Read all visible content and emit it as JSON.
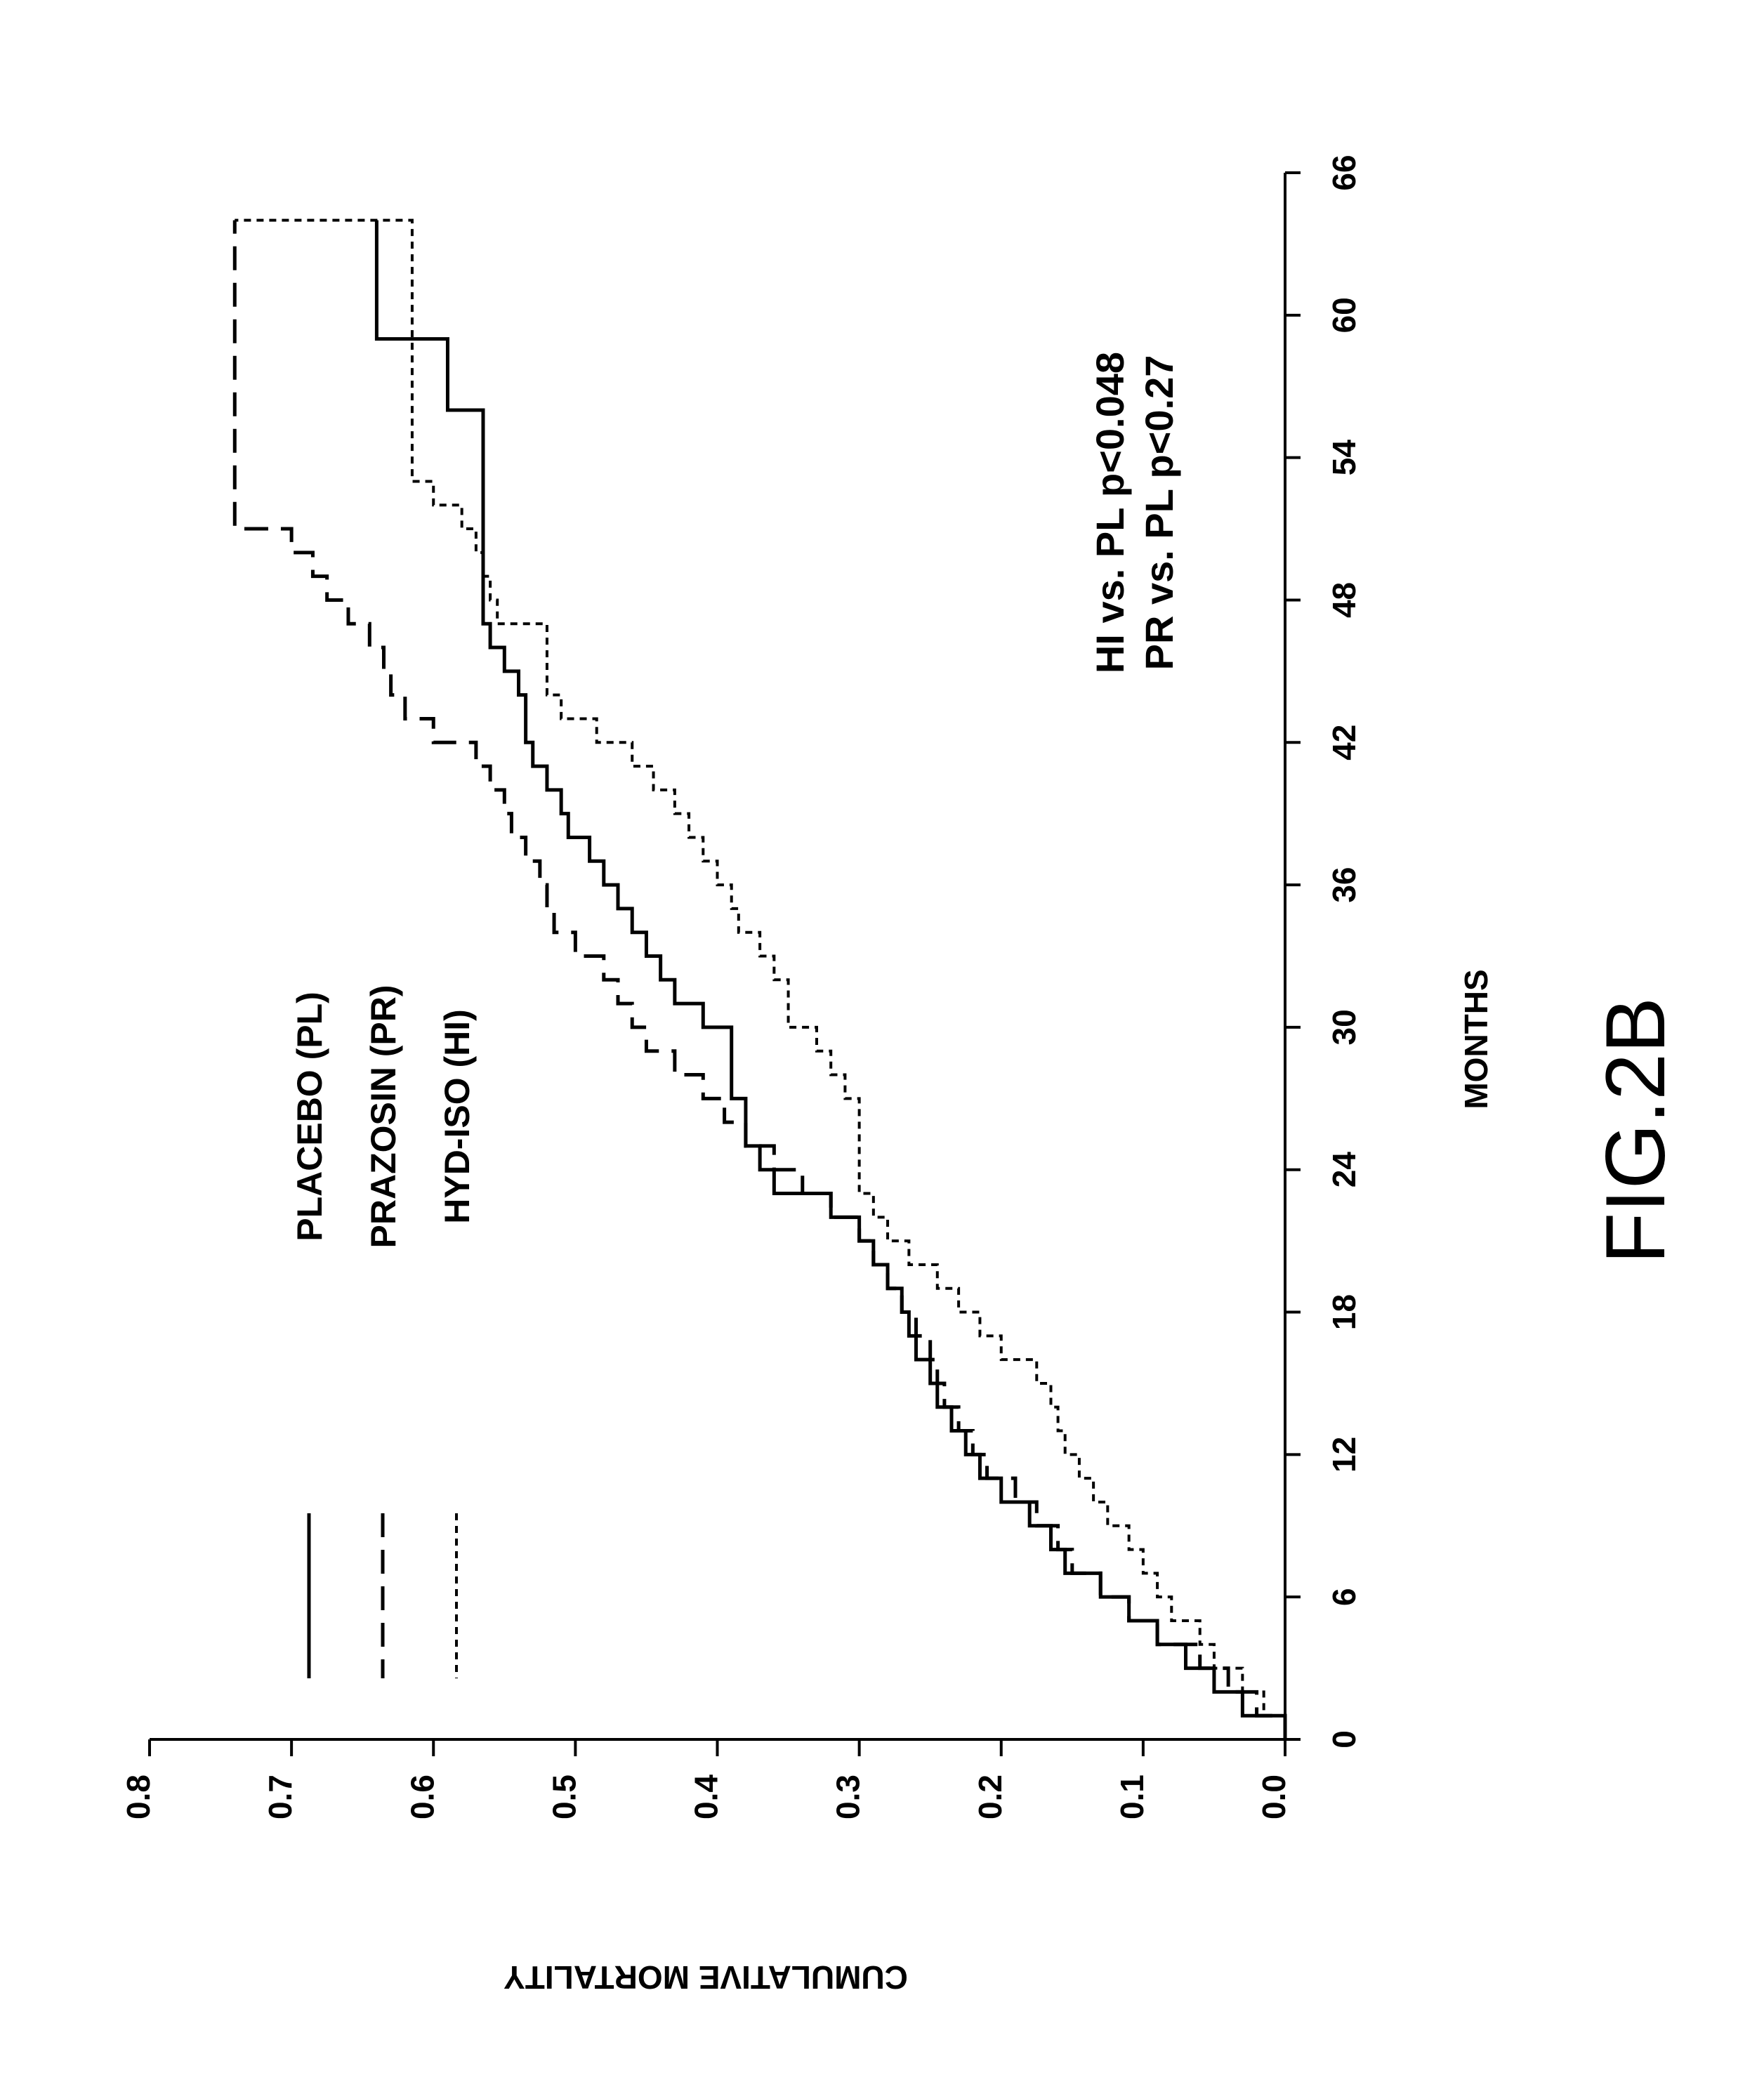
{
  "figure_label": "FIG.2B",
  "annotations": [
    "HI vs. PL p<0.048",
    "PR vs. PL p<0.27"
  ],
  "chart_data": {
    "type": "line",
    "step": true,
    "orientation": "rotated 90 degrees clockwise (x axis drawn vertically on right, y axis drawn along top)",
    "xlabel": "MONTHS",
    "ylabel": "CUMULATIVE MORTALITY",
    "xlim": [
      0,
      66
    ],
    "ylim": [
      0.0,
      0.8
    ],
    "xticks": [
      "0",
      "6",
      "12",
      "18",
      "24",
      "30",
      "36",
      "42",
      "48",
      "54",
      "60",
      "66"
    ],
    "yticks": [
      "0.0",
      "0.1",
      "0.2",
      "0.3",
      "0.4",
      "0.5",
      "0.6",
      "0.7",
      "0.8"
    ],
    "grid": false,
    "legend_position": "upper-left",
    "series": [
      {
        "name": "PLACEBO (PL)",
        "line_style": "solid",
        "x": [
          0,
          1,
          2,
          3,
          4,
          5,
          6,
          7,
          8,
          9,
          10,
          11,
          12,
          13,
          14,
          15,
          16,
          17,
          18,
          19,
          20,
          21,
          22,
          23,
          24,
          25,
          26,
          27,
          28,
          29,
          30,
          31,
          32,
          33,
          34,
          35,
          36,
          37,
          38,
          39,
          40,
          41,
          42,
          43,
          44,
          45,
          46,
          47,
          48,
          49,
          50,
          51,
          52,
          53,
          54,
          55,
          56,
          57,
          58,
          59,
          60,
          61,
          62,
          63,
          64
        ],
        "y": [
          0.0,
          0.03,
          0.05,
          0.07,
          0.09,
          0.11,
          0.13,
          0.155,
          0.165,
          0.18,
          0.2,
          0.215,
          0.225,
          0.235,
          0.245,
          0.25,
          0.26,
          0.265,
          0.27,
          0.28,
          0.29,
          0.3,
          0.32,
          0.36,
          0.37,
          0.38,
          0.38,
          0.39,
          0.39,
          0.39,
          0.41,
          0.43,
          0.44,
          0.45,
          0.46,
          0.47,
          0.48,
          0.49,
          0.505,
          0.51,
          0.52,
          0.53,
          0.535,
          0.535,
          0.54,
          0.55,
          0.56,
          0.565,
          0.565,
          0.565,
          0.565,
          0.565,
          0.565,
          0.565,
          0.565,
          0.565,
          0.59,
          0.59,
          0.59,
          0.64,
          0.64,
          0.64,
          0.64,
          0.64,
          0.64
        ]
      },
      {
        "name": "PRAZOSIN (PR)",
        "line_style": "long-dash",
        "x": [
          0,
          1,
          2,
          3,
          4,
          5,
          6,
          7,
          8,
          9,
          10,
          11,
          12,
          13,
          14,
          15,
          16,
          17,
          18,
          19,
          20,
          21,
          22,
          23,
          24,
          25,
          26,
          27,
          28,
          29,
          30,
          31,
          32,
          33,
          34,
          35,
          36,
          37,
          38,
          39,
          40,
          41,
          42,
          43,
          44,
          45,
          46,
          47,
          48,
          49,
          50,
          51,
          52,
          53,
          54,
          55,
          56,
          57,
          58,
          59,
          60,
          61,
          62,
          63,
          64
        ],
        "y": [
          0.0,
          0.02,
          0.04,
          0.06,
          0.09,
          0.11,
          0.13,
          0.15,
          0.16,
          0.175,
          0.19,
          0.21,
          0.22,
          0.23,
          0.24,
          0.245,
          0.25,
          0.26,
          0.27,
          0.28,
          0.29,
          0.3,
          0.32,
          0.34,
          0.36,
          0.38,
          0.395,
          0.41,
          0.43,
          0.45,
          0.46,
          0.47,
          0.48,
          0.5,
          0.515,
          0.52,
          0.525,
          0.535,
          0.545,
          0.55,
          0.56,
          0.57,
          0.6,
          0.62,
          0.63,
          0.635,
          0.645,
          0.66,
          0.675,
          0.685,
          0.7,
          0.74,
          0.74,
          0.74,
          0.74,
          0.74,
          0.74,
          0.74,
          0.74,
          0.74,
          0.74,
          0.74,
          0.74,
          0.74,
          0.74
        ]
      },
      {
        "name": "HYD-ISO (HI)",
        "line_style": "short-dash",
        "x": [
          0,
          1,
          2,
          3,
          4,
          5,
          6,
          7,
          8,
          9,
          10,
          11,
          12,
          13,
          14,
          15,
          16,
          17,
          18,
          19,
          20,
          21,
          22,
          23,
          24,
          25,
          26,
          27,
          28,
          29,
          30,
          31,
          32,
          33,
          34,
          35,
          36,
          37,
          38,
          39,
          40,
          41,
          42,
          43,
          44,
          45,
          46,
          47,
          48,
          49,
          50,
          51,
          52,
          53,
          54,
          55,
          56,
          57,
          58,
          59,
          60,
          61,
          62,
          63,
          64
        ],
        "y": [
          0.0,
          0.015,
          0.03,
          0.05,
          0.06,
          0.08,
          0.09,
          0.1,
          0.11,
          0.125,
          0.135,
          0.145,
          0.155,
          0.16,
          0.165,
          0.175,
          0.2,
          0.215,
          0.23,
          0.245,
          0.265,
          0.28,
          0.29,
          0.3,
          0.3,
          0.3,
          0.3,
          0.31,
          0.32,
          0.33,
          0.35,
          0.35,
          0.36,
          0.37,
          0.385,
          0.39,
          0.4,
          0.41,
          0.42,
          0.43,
          0.445,
          0.46,
          0.485,
          0.51,
          0.52,
          0.52,
          0.52,
          0.555,
          0.56,
          0.565,
          0.57,
          0.58,
          0.6,
          0.615,
          0.615,
          0.615,
          0.615,
          0.615,
          0.615,
          0.615,
          0.615,
          0.615,
          0.615,
          0.615,
          0.74
        ]
      }
    ]
  }
}
